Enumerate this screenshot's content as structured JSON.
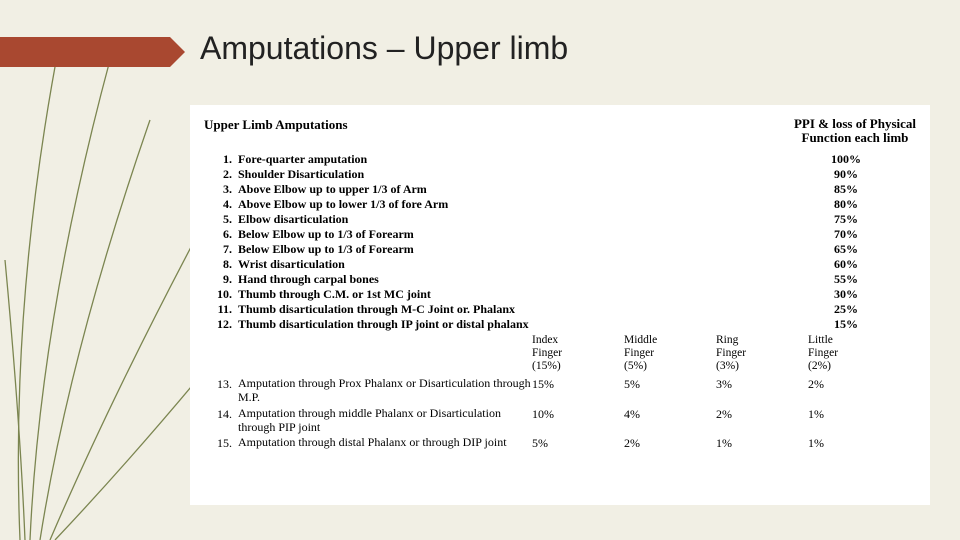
{
  "title": "Amputations – Upper limb",
  "header": {
    "left": "Upper Limb Amputations",
    "right_line1": "PPI & loss of Physical",
    "right_line2": "Function each limb"
  },
  "rows": [
    {
      "n": "1.",
      "desc": "Fore-quarter amputation",
      "pct": "100%"
    },
    {
      "n": "2.",
      "desc": "Shoulder Disarticulation",
      "pct": "90%"
    },
    {
      "n": "3.",
      "desc": "Above Elbow up to upper 1/3 of Arm",
      "pct": "85%"
    },
    {
      "n": "4.",
      "desc": "Above Elbow up to lower 1/3 of fore Arm",
      "pct": "80%"
    },
    {
      "n": "5.",
      "desc": "Elbow disarticulation",
      "pct": "75%"
    },
    {
      "n": "6.",
      "desc": "Below Elbow up to 1/3 of Forearm",
      "pct": "70%"
    },
    {
      "n": "7.",
      "desc": "Below Elbow up to 1/3 of Forearm",
      "pct": "65%"
    },
    {
      "n": "8.",
      "desc": "Wrist disarticulation",
      "pct": "60%"
    },
    {
      "n": "9.",
      "desc": "Hand through carpal bones",
      "pct": "55%"
    },
    {
      "n": "10.",
      "desc": "Thumb through C.M. or 1st MC joint",
      "pct": "30%"
    },
    {
      "n": "11.",
      "desc": "Thumb disarticulation through M-C Joint or. Phalanx",
      "pct": "25%"
    },
    {
      "n": "12.",
      "desc": "Thumb disarticulation through IP joint or distal phalanx",
      "pct": "15%"
    }
  ],
  "finger_cols": [
    {
      "name": "Index",
      "sub": "Finger",
      "base": "(15%)"
    },
    {
      "name": "Middle",
      "sub": "Finger",
      "base": "(5%)"
    },
    {
      "name": "Ring",
      "sub": "Finger",
      "base": "(3%)"
    },
    {
      "name": "Little",
      "sub": "Finger",
      "base": "(2%)"
    }
  ],
  "finger_rows": [
    {
      "n": "13.",
      "desc": "Amputation through Prox Phalanx or Disarticulation through M.P.",
      "v": [
        "15%",
        "5%",
        "3%",
        "2%"
      ]
    },
    {
      "n": "14.",
      "desc": "Amputation through middle Phalanx or Disarticulation through PIP joint",
      "v": [
        "10%",
        "4%",
        "2%",
        "1%"
      ]
    },
    {
      "n": "15.",
      "desc": "Amputation through distal Phalanx or through DIP joint",
      "v": [
        "5%",
        "2%",
        "1%",
        "1%"
      ]
    }
  ],
  "colors": {
    "background": "#f1efe4",
    "accent_band": "#a94830",
    "grass_stroke": "#6f7a40",
    "panel_bg": "#ffffff",
    "text": "#000000"
  }
}
